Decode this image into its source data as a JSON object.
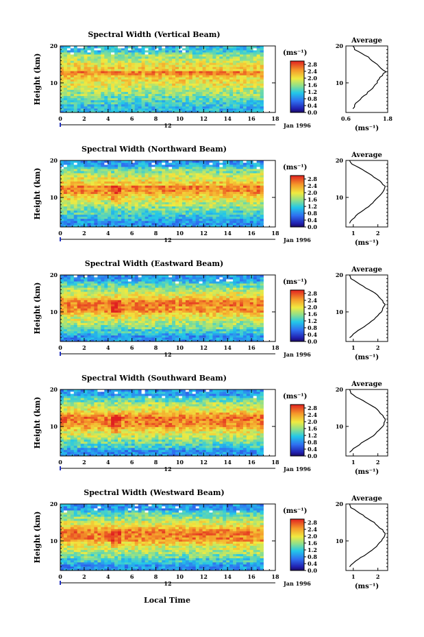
{
  "figure": {
    "xlabel": "Local Time",
    "ylabel": "Height (km)",
    "date_label": "Jan 1996",
    "day_label": "12",
    "unit_label": "(ms⁻¹)",
    "avg_title": "Average",
    "avg_xlabel": "(ms⁻¹)"
  },
  "chart_data": [
    {
      "type": "heatmap",
      "title": "Spectral Width (Vertical Beam)",
      "xlim": [
        0,
        18
      ],
      "xticks": [
        0,
        2,
        4,
        6,
        8,
        10,
        12,
        14,
        16,
        18
      ],
      "ylim": [
        2,
        20
      ],
      "yticks": [
        10,
        20
      ],
      "data_end_hour": 17.0,
      "colorbar_ticks": [
        0.0,
        0.4,
        0.8,
        1.2,
        1.6,
        2.0,
        2.4,
        2.8
      ],
      "max_band_km": [
        12,
        13
      ],
      "profile": {
        "xlim": [
          0.6,
          1.8
        ],
        "xticks": [
          0.6,
          1.8
        ],
        "height": [
          3,
          4,
          5,
          6,
          7,
          8,
          9,
          10,
          11,
          12,
          13,
          14,
          15,
          16,
          17,
          18,
          19,
          20
        ],
        "value": [
          0.8,
          0.85,
          0.95,
          1.05,
          1.2,
          1.3,
          1.4,
          1.5,
          1.55,
          1.65,
          1.75,
          1.6,
          1.5,
          1.35,
          1.25,
          1.05,
          0.85,
          0.8
        ]
      }
    },
    {
      "type": "heatmap",
      "title": "Spectral Width (Northward Beam)",
      "xlim": [
        0,
        18
      ],
      "xticks": [
        0,
        2,
        4,
        6,
        8,
        10,
        12,
        14,
        16,
        18
      ],
      "ylim": [
        2,
        20
      ],
      "yticks": [
        10,
        20
      ],
      "data_end_hour": 17.0,
      "colorbar_ticks": [
        0.0,
        0.4,
        0.8,
        1.2,
        1.6,
        2.0,
        2.4,
        2.8
      ],
      "max_band_km": [
        11,
        13
      ],
      "profile": {
        "xlim": [
          0.7,
          2.4
        ],
        "xticks": [
          1,
          2
        ],
        "height": [
          3,
          4,
          5,
          6,
          7,
          8,
          9,
          10,
          11,
          12,
          13,
          14,
          15,
          16,
          17,
          18,
          19,
          20
        ],
        "value": [
          0.85,
          0.95,
          1.1,
          1.3,
          1.5,
          1.7,
          1.85,
          2.0,
          2.15,
          2.25,
          2.3,
          2.15,
          1.95,
          1.75,
          1.5,
          1.25,
          0.95,
          0.85
        ]
      }
    },
    {
      "type": "heatmap",
      "title": "Spectral Width (Eastward Beam)",
      "xlim": [
        0,
        18
      ],
      "xticks": [
        0,
        2,
        4,
        6,
        8,
        10,
        12,
        14,
        16,
        18
      ],
      "ylim": [
        2,
        20
      ],
      "yticks": [
        10,
        20
      ],
      "data_end_hour": 17.0,
      "colorbar_ticks": [
        0.0,
        0.4,
        0.8,
        1.2,
        1.6,
        2.0,
        2.4,
        2.8
      ],
      "max_band_km": [
        10,
        14
      ],
      "profile": {
        "xlim": [
          0.7,
          2.4
        ],
        "xticks": [
          1,
          2
        ],
        "height": [
          3,
          4,
          5,
          6,
          7,
          8,
          9,
          10,
          11,
          12,
          13,
          14,
          15,
          16,
          17,
          18,
          19,
          20
        ],
        "value": [
          0.85,
          1.0,
          1.2,
          1.45,
          1.65,
          1.85,
          2.0,
          2.15,
          2.2,
          2.3,
          2.2,
          2.05,
          1.9,
          1.65,
          1.4,
          1.15,
          0.9,
          0.85
        ]
      }
    },
    {
      "type": "heatmap",
      "title": "Spectral Width (Southward Beam)",
      "xlim": [
        0,
        18
      ],
      "xticks": [
        0,
        2,
        4,
        6,
        8,
        10,
        12,
        14,
        16,
        18
      ],
      "ylim": [
        2,
        20
      ],
      "yticks": [
        10,
        20
      ],
      "data_end_hour": 17.0,
      "colorbar_ticks": [
        0.0,
        0.4,
        0.8,
        1.2,
        1.6,
        2.0,
        2.4,
        2.8
      ],
      "max_band_km": [
        10,
        14
      ],
      "profile": {
        "xlim": [
          0.7,
          2.4
        ],
        "xticks": [
          1,
          2
        ],
        "height": [
          3,
          4,
          5,
          6,
          7,
          8,
          9,
          10,
          11,
          12,
          13,
          14,
          15,
          16,
          17,
          18,
          19,
          20
        ],
        "value": [
          0.85,
          1.0,
          1.25,
          1.45,
          1.7,
          1.9,
          2.05,
          2.2,
          2.25,
          2.3,
          2.2,
          2.05,
          1.9,
          1.65,
          1.4,
          1.1,
          0.9,
          0.85
        ]
      }
    },
    {
      "type": "heatmap",
      "title": "Spectral Width (Westward Beam)",
      "xlim": [
        0,
        18
      ],
      "xticks": [
        0,
        2,
        4,
        6,
        8,
        10,
        12,
        14,
        16,
        18
      ],
      "ylim": [
        2,
        20
      ],
      "yticks": [
        10,
        20
      ],
      "data_end_hour": 17.0,
      "colorbar_ticks": [
        0.0,
        0.4,
        0.8,
        1.2,
        1.6,
        2.0,
        2.4,
        2.8
      ],
      "max_band_km": [
        10,
        14
      ],
      "profile": {
        "xlim": [
          0.7,
          2.4
        ],
        "xticks": [
          1,
          2
        ],
        "height": [
          3,
          4,
          5,
          6,
          7,
          8,
          9,
          10,
          11,
          12,
          13,
          14,
          15,
          16,
          17,
          18,
          19,
          20
        ],
        "value": [
          0.85,
          1.0,
          1.2,
          1.45,
          1.65,
          1.85,
          2.0,
          2.15,
          2.25,
          2.3,
          2.2,
          2.0,
          1.85,
          1.6,
          1.4,
          1.15,
          0.9,
          0.85
        ]
      }
    }
  ]
}
